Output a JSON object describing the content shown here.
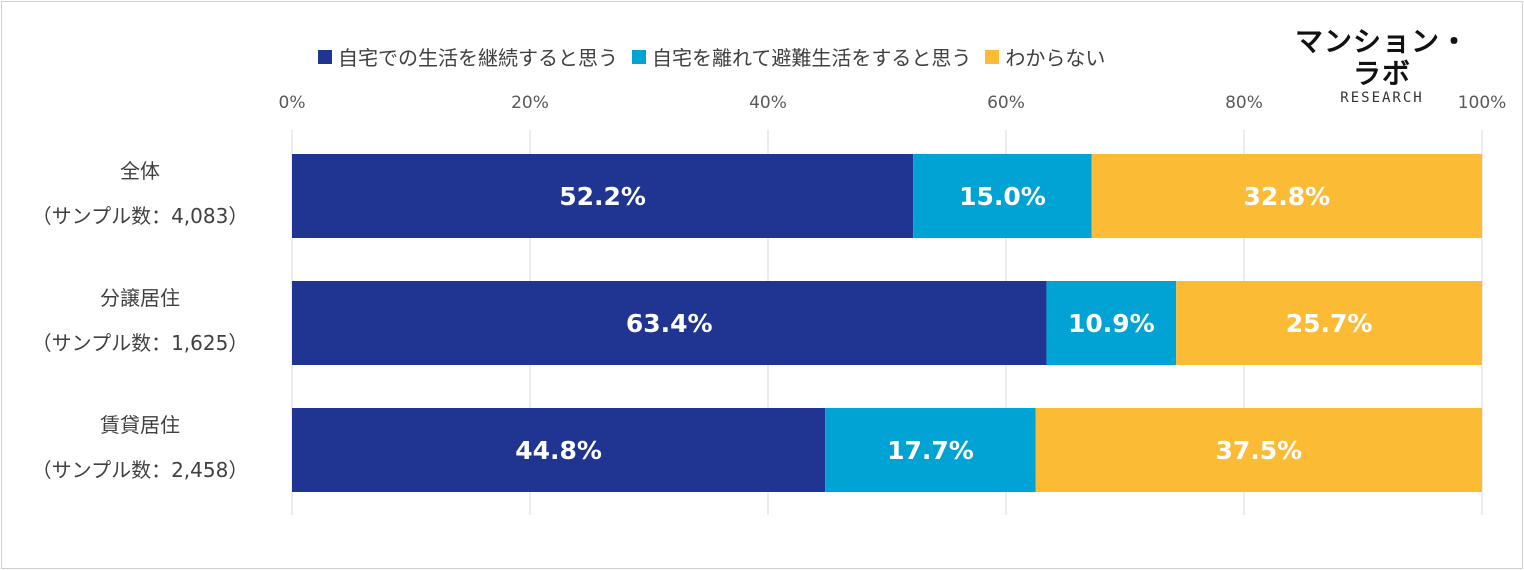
{
  "chart_data": {
    "type": "bar",
    "orientation": "horizontal",
    "stacked": true,
    "categories": [
      [
        "全体",
        "（サンプル数：4,083）"
      ],
      [
        "分譲居住",
        "（サンプル数：1,625）"
      ],
      [
        "賃貸居住",
        "（サンプル数：2,458）"
      ]
    ],
    "series": [
      {
        "name": "自宅での生活を継続すると思う",
        "color": "#1f3591",
        "values": [
          52.2,
          63.4,
          44.8
        ],
        "labels": [
          "52.2%",
          "63.4%",
          "44.8%"
        ]
      },
      {
        "name": "自宅を離れて避難生活をすると思う",
        "color": "#00a3d4",
        "values": [
          15.0,
          10.9,
          17.7
        ],
        "labels": [
          "15.0%",
          "10.9%",
          "17.7%"
        ]
      },
      {
        "name": "わからない",
        "color": "#fbbb35",
        "values": [
          32.8,
          25.7,
          37.5
        ],
        "labels": [
          "32.8%",
          "25.7%",
          "37.5%"
        ]
      }
    ],
    "x_ticks": [
      "0%",
      "20%",
      "40%",
      "60%",
      "80%",
      "100%"
    ],
    "xlim": [
      0,
      100
    ],
    "grid": true,
    "legend_position": "top"
  },
  "logo": {
    "main": "マンション・ラボ",
    "sub": "RESEARCH"
  }
}
